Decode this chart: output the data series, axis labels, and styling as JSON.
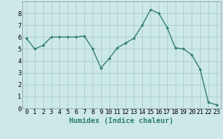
{
  "x": [
    0,
    1,
    2,
    3,
    4,
    5,
    6,
    7,
    8,
    9,
    10,
    11,
    12,
    13,
    14,
    15,
    16,
    17,
    18,
    19,
    20,
    21,
    22,
    23
  ],
  "y": [
    5.9,
    5.0,
    5.3,
    6.0,
    6.0,
    6.0,
    6.0,
    6.1,
    5.0,
    3.4,
    4.2,
    5.1,
    5.5,
    5.9,
    7.0,
    8.3,
    8.0,
    6.8,
    5.1,
    5.0,
    4.5,
    3.3,
    0.5,
    0.3
  ],
  "line_color": "#2e7d6e",
  "marker_color": "#2e7d6e",
  "bg_color": "#cce8e8",
  "grid_color": "#aacccc",
  "xlabel": "Humidex (Indice chaleur)",
  "xlim": [
    -0.5,
    23.5
  ],
  "ylim": [
    0,
    9
  ],
  "xticks": [
    0,
    1,
    2,
    3,
    4,
    5,
    6,
    7,
    8,
    9,
    10,
    11,
    12,
    13,
    14,
    15,
    16,
    17,
    18,
    19,
    20,
    21,
    22,
    23
  ],
  "yticks": [
    0,
    1,
    2,
    3,
    4,
    5,
    6,
    7,
    8
  ],
  "xlabel_fontsize": 7.5,
  "tick_fontsize": 6.5
}
